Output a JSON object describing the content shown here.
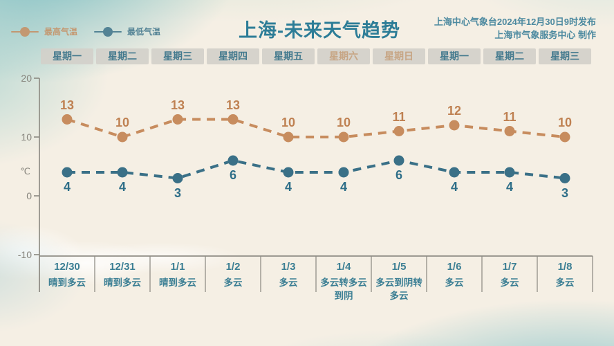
{
  "header": {
    "publisher_line1": "上海中心气象台2024年12月30日9时发布",
    "publisher_line2": "上海市气象服务中心 制作"
  },
  "colors": {
    "background": "#f5efe4",
    "axis": "#908e86",
    "tick_text": "#86847c",
    "title_text": "#2d7d97",
    "publisher_text": "#4d8aa0",
    "weekday_text": "#447a8e",
    "weekend_text": "#c7a584",
    "weekday_box": "#d4d1cb",
    "table_text": "#3c7f94",
    "high_series": "#c78c5e",
    "high_label": "#bf8152",
    "low_series": "#3a7087",
    "low_label": "#2e6e88"
  },
  "chart_data": {
    "type": "line",
    "title": "上海-未来天气趋势",
    "ylabel": "℃",
    "ylim": [
      -10,
      20
    ],
    "yticks": [
      20,
      10,
      0,
      -10
    ],
    "grid": false,
    "legend_position": "top-left",
    "columns": [
      {
        "weekday": "星期一",
        "weekend": false,
        "date": "12/30",
        "weather": "晴到多云"
      },
      {
        "weekday": "星期二",
        "weekend": false,
        "date": "12/31",
        "weather": "晴到多云"
      },
      {
        "weekday": "星期三",
        "weekend": false,
        "date": "1/1",
        "weather": "晴到多云"
      },
      {
        "weekday": "星期四",
        "weekend": false,
        "date": "1/2",
        "weather": "多云"
      },
      {
        "weekday": "星期五",
        "weekend": false,
        "date": "1/3",
        "weather": "多云"
      },
      {
        "weekday": "星期六",
        "weekend": true,
        "date": "1/4",
        "weather": "多云转多云到阴"
      },
      {
        "weekday": "星期日",
        "weekend": true,
        "date": "1/5",
        "weather": "多云到阴转多云"
      },
      {
        "weekday": "星期一",
        "weekend": false,
        "date": "1/6",
        "weather": "多云"
      },
      {
        "weekday": "星期二",
        "weekend": false,
        "date": "1/7",
        "weather": "多云"
      },
      {
        "weekday": "星期三",
        "weekend": false,
        "date": "1/8",
        "weather": "多云"
      }
    ],
    "series": [
      {
        "name": "最高气温",
        "label_position": "above",
        "values": [
          13,
          10,
          13,
          13,
          10,
          10,
          11,
          12,
          11,
          10
        ]
      },
      {
        "name": "最低气温",
        "label_position": "below",
        "values": [
          4,
          4,
          3,
          6,
          4,
          4,
          6,
          4,
          4,
          3
        ]
      }
    ]
  }
}
